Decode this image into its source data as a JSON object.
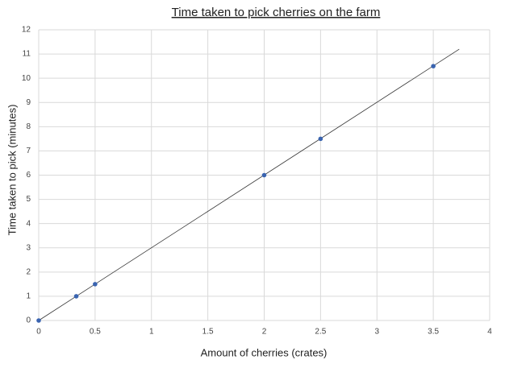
{
  "chart_data": {
    "type": "scatter",
    "title": "Time taken to pick cherries on the farm",
    "x_label": "Amount of cherries (crates)",
    "y_label": "Time taken to pick (minutes)",
    "series": [
      {
        "color": "#3a64b0",
        "x": [
          0,
          0.333,
          0.5,
          2,
          2.5,
          3.5
        ],
        "values": [
          0,
          1,
          1.5,
          6,
          7.5,
          10.5
        ]
      }
    ],
    "trend_line": {
      "color": "#333333",
      "x": [
        0,
        3.73
      ],
      "values": [
        0,
        11.2
      ]
    },
    "xlim": [
      0,
      4
    ],
    "xticks": [
      0,
      0.5,
      1,
      1.5,
      2,
      2.5,
      3,
      3.5,
      4
    ],
    "ylim": [
      0,
      12
    ],
    "yticks": [
      0,
      1,
      2,
      3,
      4,
      5,
      6,
      7,
      8,
      9,
      10,
      11,
      12
    ],
    "grid": true
  }
}
